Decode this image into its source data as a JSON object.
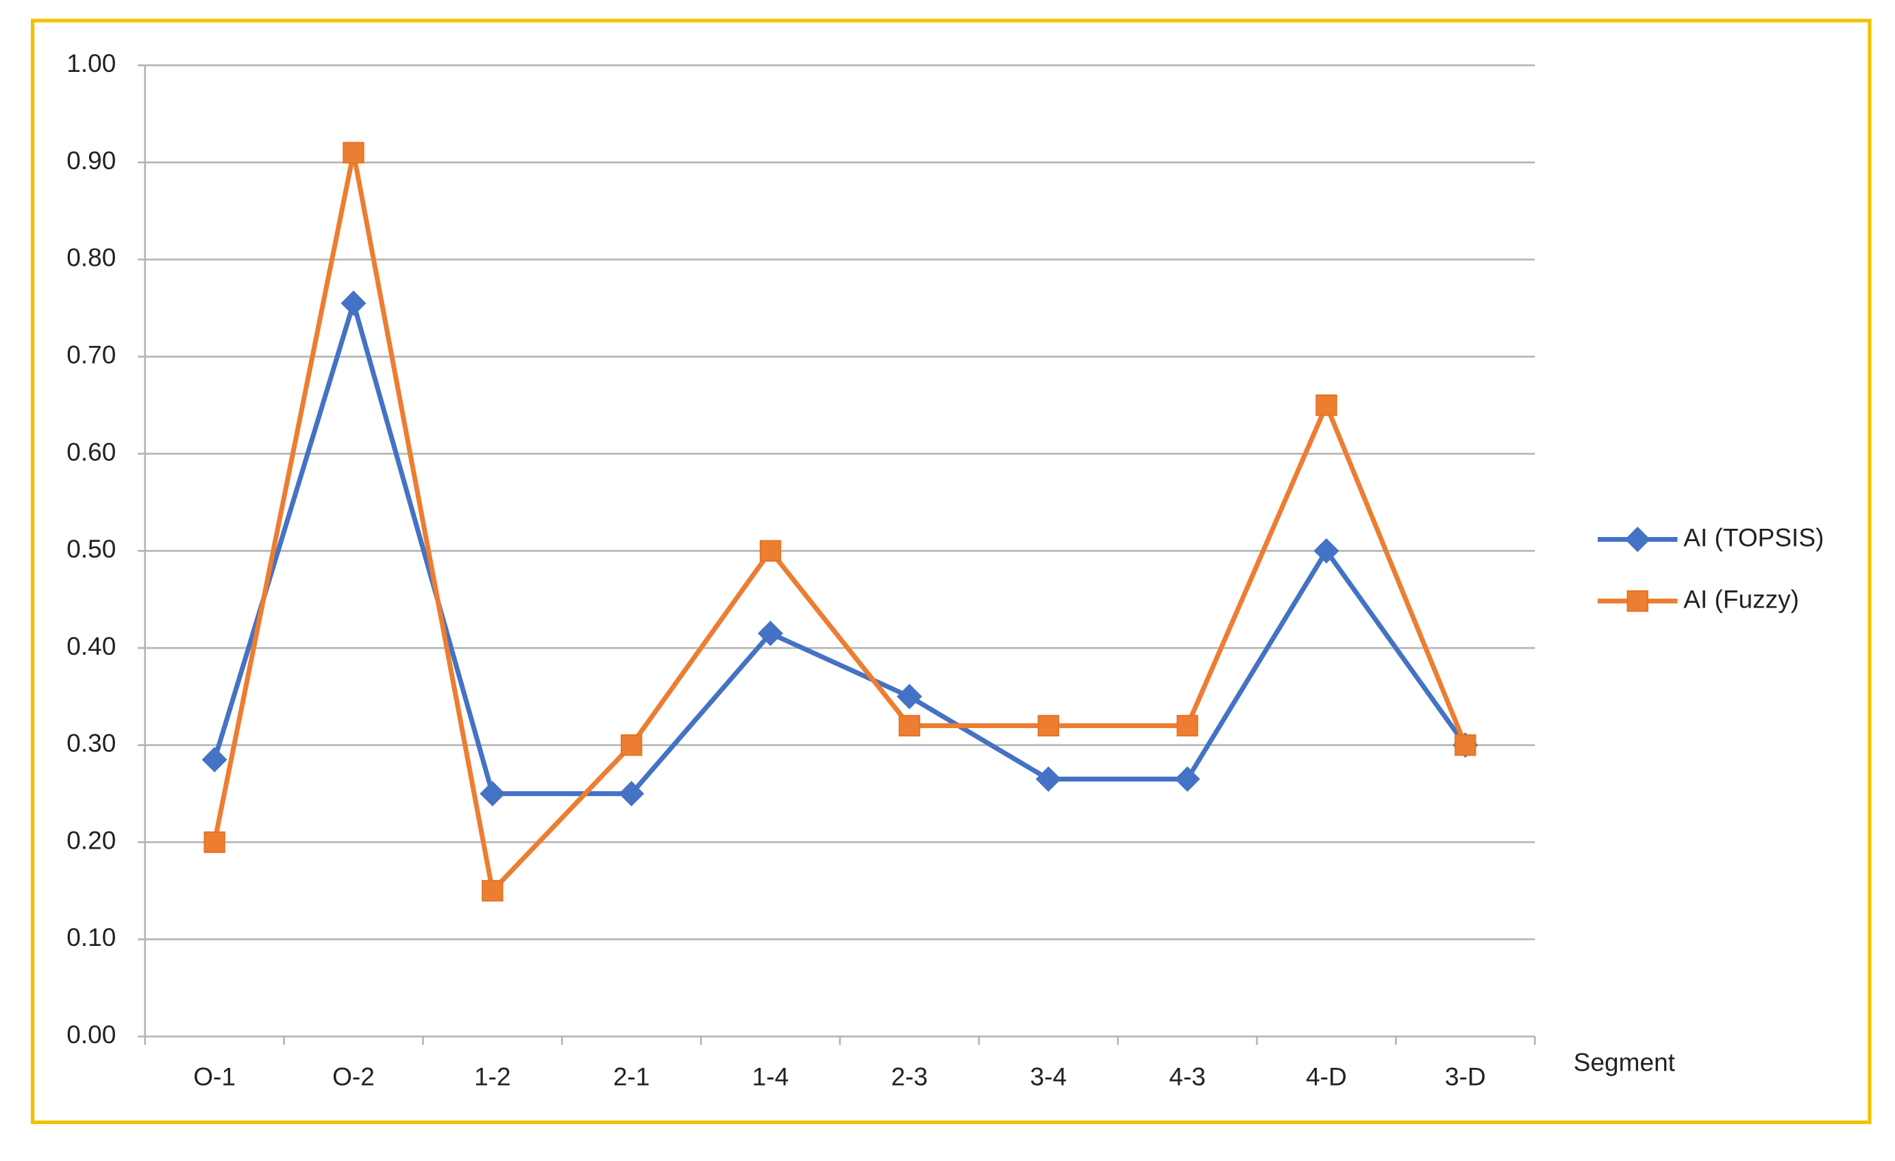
{
  "chart_data": {
    "type": "line",
    "x_label": "Segment",
    "categories": [
      "O-1",
      "O-2",
      "1-2",
      "2-1",
      "1-4",
      "2-3",
      "3-4",
      "4-3",
      "4-D",
      "3-D"
    ],
    "series": [
      {
        "name": "AI (TOPSIS)",
        "color": "#4472c4",
        "marker": "diamond",
        "values": [
          0.285,
          0.755,
          0.25,
          0.25,
          0.415,
          0.35,
          0.265,
          0.265,
          0.5,
          0.3
        ]
      },
      {
        "name": "AI (Fuzzy)",
        "color": "#ed7d31",
        "marker": "square",
        "values": [
          0.2,
          0.91,
          0.15,
          0.3,
          0.5,
          0.32,
          0.32,
          0.32,
          0.65,
          0.3
        ]
      }
    ],
    "ylim": [
      0,
      1
    ],
    "yticks": [
      {
        "value": 0,
        "label": "0.00"
      },
      {
        "value": 0.1,
        "label": "0.10"
      },
      {
        "value": 0.2,
        "label": "0.20"
      },
      {
        "value": 0.3,
        "label": "0.30"
      },
      {
        "value": 0.4,
        "label": "0.40"
      },
      {
        "value": 0.5,
        "label": "0.50"
      },
      {
        "value": 0.6,
        "label": "0.60"
      },
      {
        "value": 0.7,
        "label": "0.70"
      },
      {
        "value": 0.8,
        "label": "0.80"
      },
      {
        "value": 0.9,
        "label": "0.90"
      },
      {
        "value": 1,
        "label": "1.00"
      }
    ],
    "grid": true,
    "legend": "right"
  }
}
